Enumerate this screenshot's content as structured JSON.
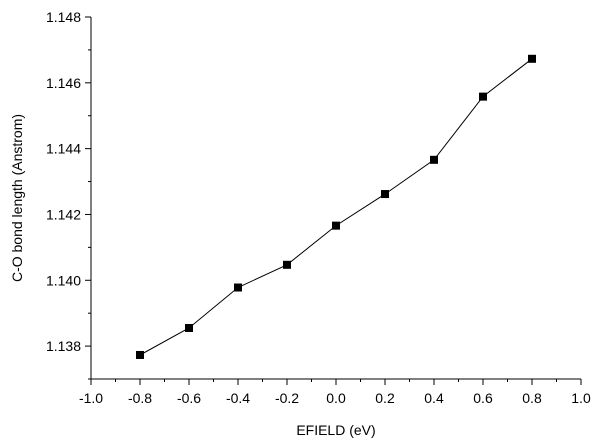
{
  "chart_data": {
    "type": "line",
    "title": "",
    "xlabel": "EFIELD (eV)",
    "ylabel": "C-O bond length (Anstrom)",
    "xlim": [
      -1.0,
      1.0
    ],
    "ylim": [
      1.137,
      1.148
    ],
    "x_ticks": [
      "-1.0",
      "-0.8",
      "-0.6",
      "-0.4",
      "-0.2",
      "0.0",
      "0.2",
      "0.4",
      "0.6",
      "0.8",
      "1.0"
    ],
    "y_ticks": [
      "1.138",
      "1.140",
      "1.142",
      "1.144",
      "1.146",
      "1.148"
    ],
    "grid": false,
    "legend": "none",
    "series": [
      {
        "x": [
          -0.8,
          -0.6,
          -0.4,
          -0.2,
          0.0,
          0.2,
          0.4,
          0.6,
          0.8
        ],
        "y": [
          1.13773,
          1.13855,
          1.13978,
          1.14047,
          1.14166,
          1.14262,
          1.14366,
          1.14558,
          1.14673
        ],
        "color": "#000000",
        "marker": "square"
      }
    ]
  }
}
